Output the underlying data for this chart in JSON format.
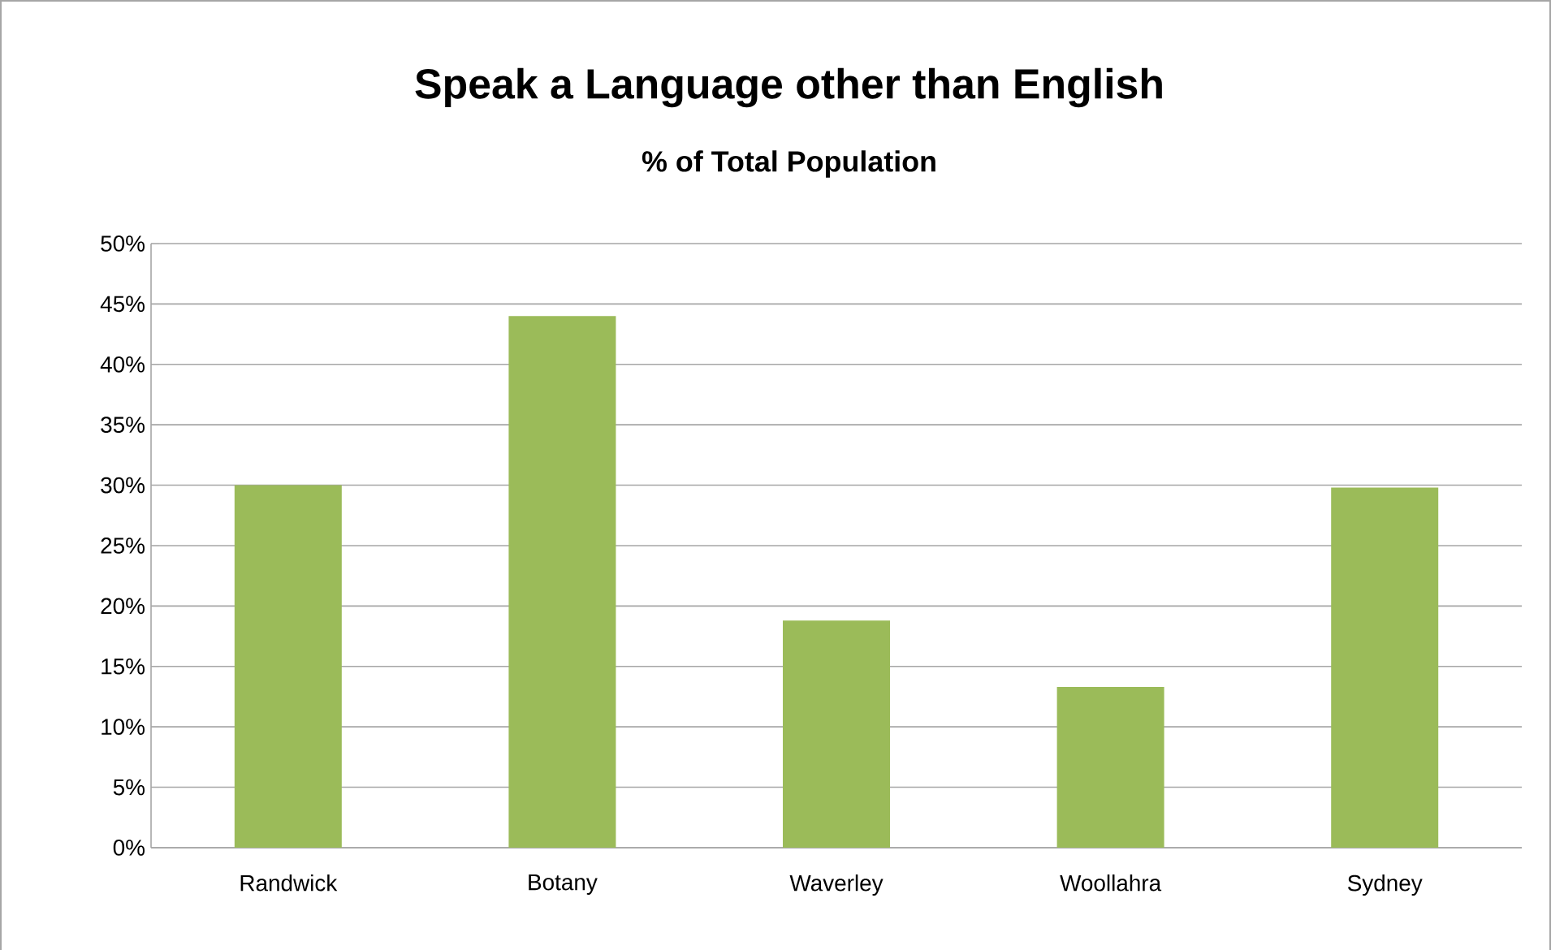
{
  "chart_data": {
    "type": "bar",
    "title": "Speak a Language other than English",
    "subtitle": "% of Total Population",
    "categories": [
      "Randwick",
      "Botany",
      "Waverley",
      "Woollahra",
      "Sydney"
    ],
    "values": [
      30,
      44,
      18.8,
      13.3,
      29.8
    ],
    "color": "#9bbb59",
    "ylim": [
      0,
      50
    ],
    "yticks": [
      {
        "value": 0,
        "label": "0%"
      },
      {
        "value": 5,
        "label": "5%"
      },
      {
        "value": 10,
        "label": "10%"
      },
      {
        "value": 15,
        "label": "15%"
      },
      {
        "value": 20,
        "label": "20%"
      },
      {
        "value": 25,
        "label": "25%"
      },
      {
        "value": 30,
        "label": "30%"
      },
      {
        "value": 35,
        "label": "35%"
      },
      {
        "value": 40,
        "label": "40%"
      },
      {
        "value": 45,
        "label": "45%"
      },
      {
        "value": 50,
        "label": "50%"
      }
    ],
    "grid": "y"
  }
}
